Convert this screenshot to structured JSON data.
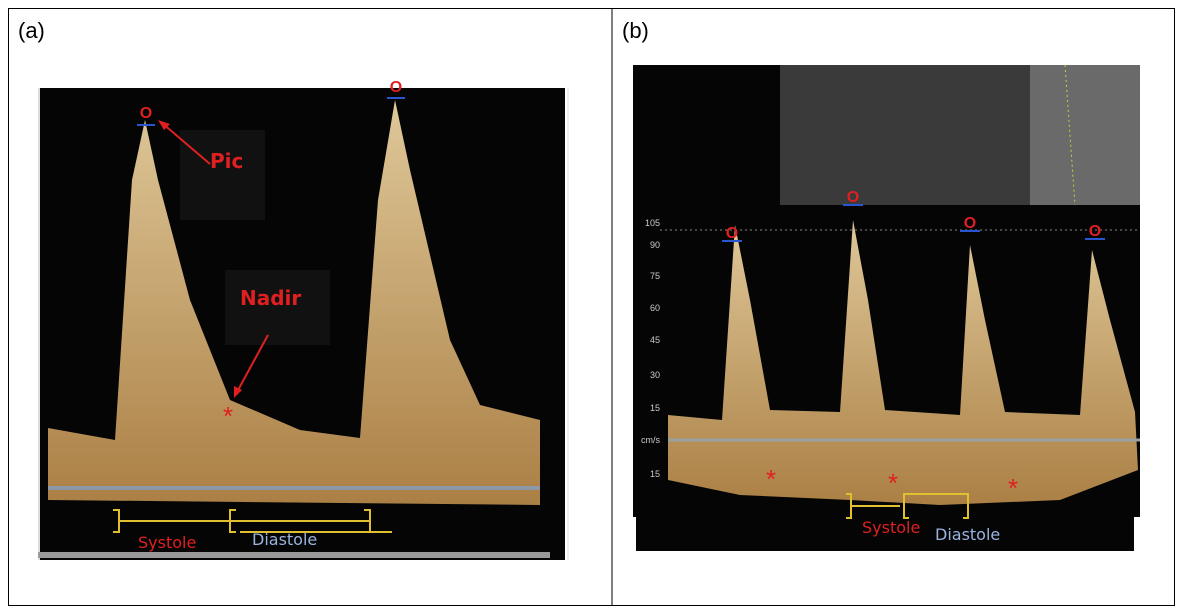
{
  "panels": [
    {
      "label": "(a)",
      "peak_markers": [
        "O",
        "O"
      ],
      "annotations": {
        "peak": "Pic",
        "nadir": "Nadir",
        "systole": "Systole",
        "diastole": "Diastole"
      }
    },
    {
      "label": "(b)",
      "peak_markers": [
        "O",
        "O",
        "O",
        "O"
      ],
      "scale_labels": [
        "105",
        "90",
        "75",
        "60",
        "45",
        "30",
        "15",
        "cm/s",
        "15"
      ],
      "annotations": {
        "systole": "Systole",
        "diastole": "Diastole"
      }
    }
  ]
}
